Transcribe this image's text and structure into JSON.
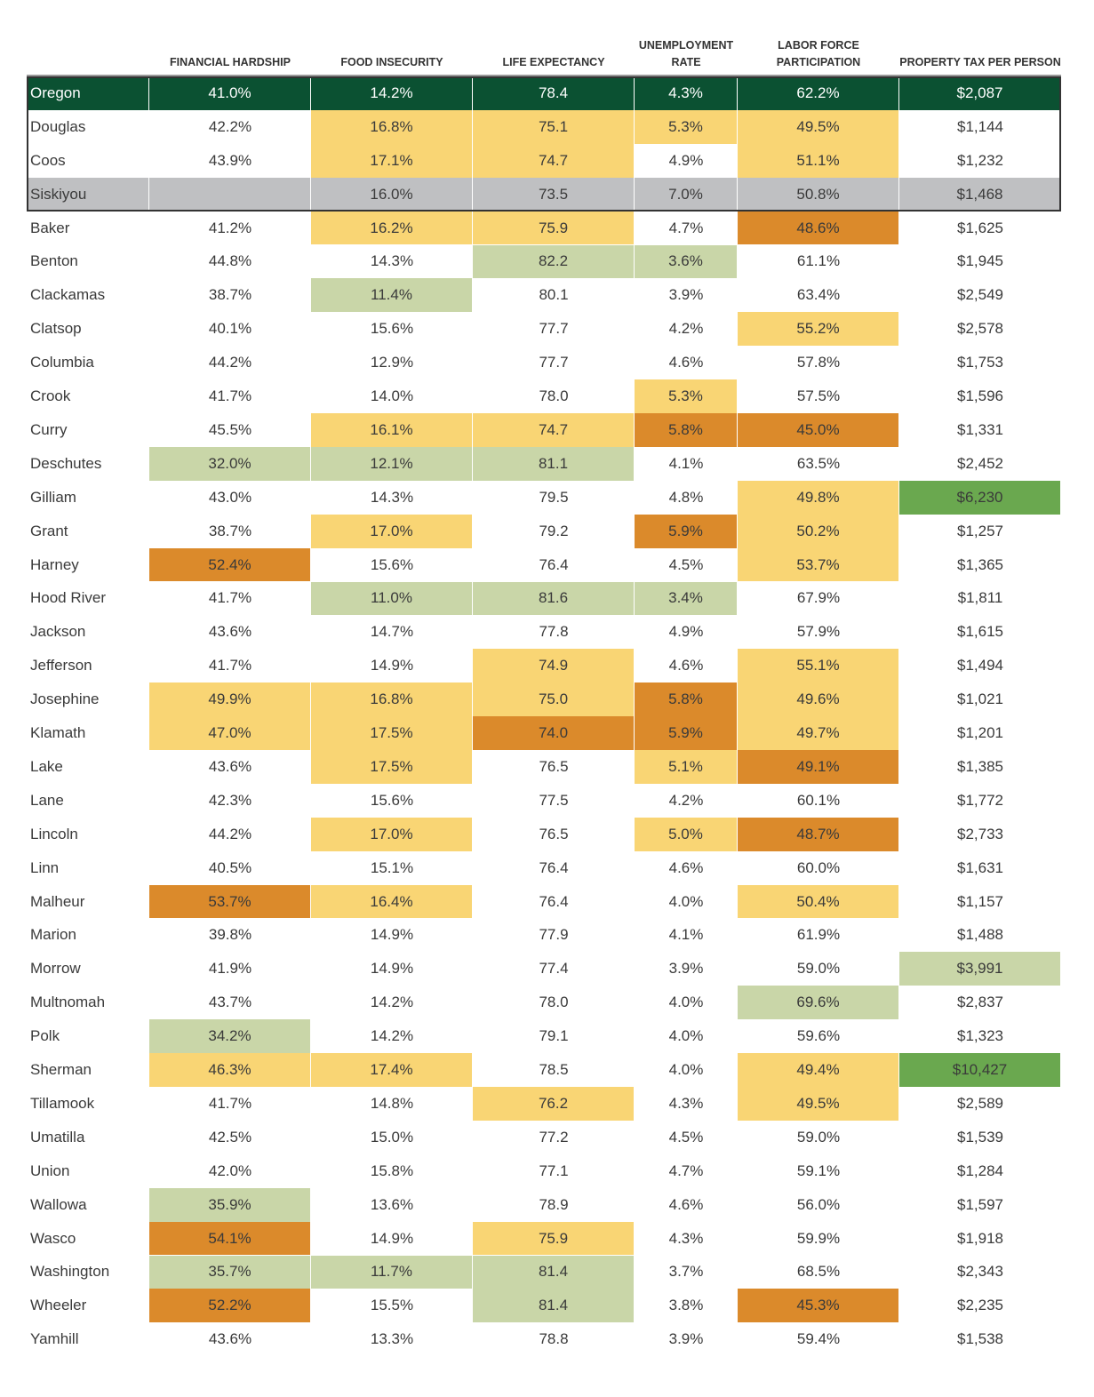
{
  "table": {
    "headers": [
      "FINANCIAL HARDSHIP",
      "FOOD INSECURITY",
      "LIFE EXPECTANCY",
      "UNEMPLOYMENT RATE",
      "LABOR FORCE PARTICIPATION",
      "PROPERTY TAX PER PERSON"
    ],
    "rows": [
      [
        "Oregon",
        "41.0%",
        "14.2%",
        "78.4",
        "4.3%",
        "62.2%",
        "$2,087"
      ],
      [
        "Douglas",
        "42.2%",
        "16.8%",
        "75.1",
        "5.3%",
        "49.5%",
        "$1,144"
      ],
      [
        "Coos",
        "43.9%",
        "17.1%",
        "74.7",
        "4.9%",
        "51.1%",
        "$1,232"
      ],
      [
        "Siskiyou",
        null,
        "16.0%",
        "73.5",
        "7.0%",
        "50.8%",
        "$1,468"
      ],
      [
        "Baker",
        "41.2%",
        "16.2%",
        "75.9",
        "4.7%",
        "48.6%",
        "$1,625"
      ],
      [
        "Benton",
        "44.8%",
        "14.3%",
        "82.2",
        "3.6%",
        "61.1%",
        "$1,945"
      ],
      [
        "Clackamas",
        "38.7%",
        "11.4%",
        "80.1",
        "3.9%",
        "63.4%",
        "$2,549"
      ],
      [
        "Clatsop",
        "40.1%",
        "15.6%",
        "77.7",
        "4.2%",
        "55.2%",
        "$2,578"
      ],
      [
        "Columbia",
        "44.2%",
        "12.9%",
        "77.7",
        "4.6%",
        "57.8%",
        "$1,753"
      ],
      [
        "Crook",
        "41.7%",
        "14.0%",
        "78.0",
        "5.3%",
        "57.5%",
        "$1,596"
      ],
      [
        "Curry",
        "45.5%",
        "16.1%",
        "74.7",
        "5.8%",
        "45.0%",
        "$1,331"
      ],
      [
        "Deschutes",
        "32.0%",
        "12.1%",
        "81.1",
        "4.1%",
        "63.5%",
        "$2,452"
      ],
      [
        "Gilliam",
        "43.0%",
        "14.3%",
        "79.5",
        "4.8%",
        "49.8%",
        "$6,230"
      ],
      [
        "Grant",
        "38.7%",
        "17.0%",
        "79.2",
        "5.9%",
        "50.2%",
        "$1,257"
      ],
      [
        "Harney",
        "52.4%",
        "15.6%",
        "76.4",
        "4.5%",
        "53.7%",
        "$1,365"
      ],
      [
        "Hood River",
        "41.7%",
        "11.0%",
        "81.6",
        "3.4%",
        "67.9%",
        "$1,811"
      ],
      [
        "Jackson",
        "43.6%",
        "14.7%",
        "77.8",
        "4.9%",
        "57.9%",
        "$1,615"
      ],
      [
        "Jefferson",
        "41.7%",
        "14.9%",
        "74.9",
        "4.6%",
        "55.1%",
        "$1,494"
      ],
      [
        "Josephine",
        "49.9%",
        "16.8%",
        "75.0",
        "5.8%",
        "49.6%",
        "$1,021"
      ],
      [
        "Klamath",
        "47.0%",
        "17.5%",
        "74.0",
        "5.9%",
        "49.7%",
        "$1,201"
      ],
      [
        "Lake",
        "43.6%",
        "17.5%",
        "76.5",
        "5.1%",
        "49.1%",
        "$1,385"
      ],
      [
        "Lane",
        "42.3%",
        "15.6%",
        "77.5",
        "4.2%",
        "60.1%",
        "$1,772"
      ],
      [
        "Lincoln",
        "44.2%",
        "17.0%",
        "76.5",
        "5.0%",
        "48.7%",
        "$2,733"
      ],
      [
        "Linn",
        "40.5%",
        "15.1%",
        "76.4",
        "4.6%",
        "60.0%",
        "$1,631"
      ],
      [
        "Malheur",
        "53.7%",
        "16.4%",
        "76.4",
        "4.0%",
        "50.4%",
        "$1,157"
      ],
      [
        "Marion",
        "39.8%",
        "14.9%",
        "77.9",
        "4.1%",
        "61.9%",
        "$1,488"
      ],
      [
        "Morrow",
        "41.9%",
        "14.9%",
        "77.4",
        "3.9%",
        "59.0%",
        "$3,991"
      ],
      [
        "Multnomah",
        "43.7%",
        "14.2%",
        "78.0",
        "4.0%",
        "69.6%",
        "$2,837"
      ],
      [
        "Polk",
        "34.2%",
        "14.2%",
        "79.1",
        "4.0%",
        "59.6%",
        "$1,323"
      ],
      [
        "Sherman",
        "46.3%",
        "17.4%",
        "78.5",
        "4.0%",
        "49.4%",
        "$10,427"
      ],
      [
        "Tillamook",
        "41.7%",
        "14.8%",
        "76.2",
        "4.3%",
        "49.5%",
        "$2,589"
      ],
      [
        "Umatilla",
        "42.5%",
        "15.0%",
        "77.2",
        "4.5%",
        "59.0%",
        "$1,539"
      ],
      [
        "Union",
        "42.0%",
        "15.8%",
        "77.1",
        "4.7%",
        "59.1%",
        "$1,284"
      ],
      [
        "Wallowa",
        "35.9%",
        "13.6%",
        "78.9",
        "4.6%",
        "56.0%",
        "$1,597"
      ],
      [
        "Wasco",
        "54.1%",
        "14.9%",
        "75.9",
        "4.3%",
        "59.9%",
        "$1,918"
      ],
      [
        "Washington",
        "35.7%",
        "11.7%",
        "81.4",
        "3.7%",
        "68.5%",
        "$2,343"
      ],
      [
        "Wheeler",
        "52.2%",
        "15.5%",
        "81.4",
        "3.8%",
        "45.3%",
        "$2,235"
      ],
      [
        "Yamhill",
        "43.6%",
        "13.3%",
        "78.8",
        "3.9%",
        "59.4%",
        "$1,538"
      ]
    ],
    "fills": [
      [
        "#0b5132",
        "#0b5132",
        "#0b5132",
        "#0b5132",
        "#0b5132",
        "#0b5132",
        "#0b5132"
      ],
      [
        null,
        null,
        "#f9d574",
        "#f9d574",
        "#f9d574",
        "#f9d574",
        null
      ],
      [
        null,
        null,
        "#f9d574",
        "#f9d574",
        null,
        "#f9d574",
        null
      ],
      [
        "#bfc0c2",
        "#bfc0c2",
        "#bfc0c2",
        "#bfc0c2",
        "#bfc0c2",
        "#bfc0c2",
        "#bfc0c2"
      ],
      [
        null,
        null,
        "#f9d574",
        "#f9d574",
        null,
        "#db8a2b",
        null
      ],
      [
        null,
        null,
        null,
        "#c9d6a8",
        "#c9d6a8",
        null,
        null
      ],
      [
        null,
        null,
        "#c9d6a8",
        null,
        null,
        null,
        null
      ],
      [
        null,
        null,
        null,
        null,
        null,
        "#f9d574",
        null
      ],
      [
        null,
        null,
        null,
        null,
        null,
        null,
        null
      ],
      [
        null,
        null,
        null,
        null,
        "#f9d574",
        null,
        null
      ],
      [
        null,
        null,
        "#f9d574",
        "#f9d574",
        "#db8a2b",
        "#db8a2b",
        null
      ],
      [
        null,
        "#c9d6a8",
        "#c9d6a8",
        "#c9d6a8",
        null,
        null,
        null
      ],
      [
        null,
        null,
        null,
        null,
        null,
        "#f9d574",
        "#6aa84f"
      ],
      [
        null,
        null,
        "#f9d574",
        null,
        "#db8a2b",
        "#f9d574",
        null
      ],
      [
        null,
        "#db8a2b",
        null,
        null,
        null,
        "#f9d574",
        null
      ],
      [
        null,
        null,
        "#c9d6a8",
        "#c9d6a8",
        "#c9d6a8",
        null,
        null
      ],
      [
        null,
        null,
        null,
        null,
        null,
        null,
        null
      ],
      [
        null,
        null,
        null,
        "#f9d574",
        null,
        "#f9d574",
        null
      ],
      [
        null,
        "#f9d574",
        "#f9d574",
        "#f9d574",
        "#db8a2b",
        "#f9d574",
        null
      ],
      [
        null,
        "#f9d574",
        "#f9d574",
        "#db8a2b",
        "#db8a2b",
        "#f9d574",
        null
      ],
      [
        null,
        null,
        "#f9d574",
        null,
        "#f9d574",
        "#db8a2b",
        null
      ],
      [
        null,
        null,
        null,
        null,
        null,
        null,
        null
      ],
      [
        null,
        null,
        "#f9d574",
        null,
        "#f9d574",
        "#db8a2b",
        null
      ],
      [
        null,
        null,
        null,
        null,
        null,
        null,
        null
      ],
      [
        null,
        "#db8a2b",
        "#f9d574",
        null,
        null,
        "#f9d574",
        null
      ],
      [
        null,
        null,
        null,
        null,
        null,
        null,
        null
      ],
      [
        null,
        null,
        null,
        null,
        null,
        null,
        "#c9d6a8"
      ],
      [
        null,
        null,
        null,
        null,
        null,
        "#c9d6a8",
        null
      ],
      [
        null,
        "#c9d6a8",
        null,
        null,
        null,
        null,
        null
      ],
      [
        null,
        "#f9d574",
        "#f9d574",
        null,
        null,
        "#f9d574",
        "#6aa84f"
      ],
      [
        null,
        null,
        null,
        "#f9d574",
        null,
        "#f9d574",
        null
      ],
      [
        null,
        null,
        null,
        null,
        null,
        null,
        null
      ],
      [
        null,
        null,
        null,
        null,
        null,
        null,
        null
      ],
      [
        null,
        "#c9d6a8",
        null,
        null,
        null,
        null,
        null
      ],
      [
        null,
        "#db8a2b",
        null,
        "#f9d574",
        null,
        null,
        null
      ],
      [
        null,
        "#c9d6a8",
        "#c9d6a8",
        "#c9d6a8",
        null,
        null,
        null
      ],
      [
        null,
        "#db8a2b",
        null,
        "#c9d6a8",
        null,
        "#db8a2b",
        null
      ],
      [
        null,
        null,
        null,
        null,
        null,
        null,
        null
      ]
    ]
  }
}
